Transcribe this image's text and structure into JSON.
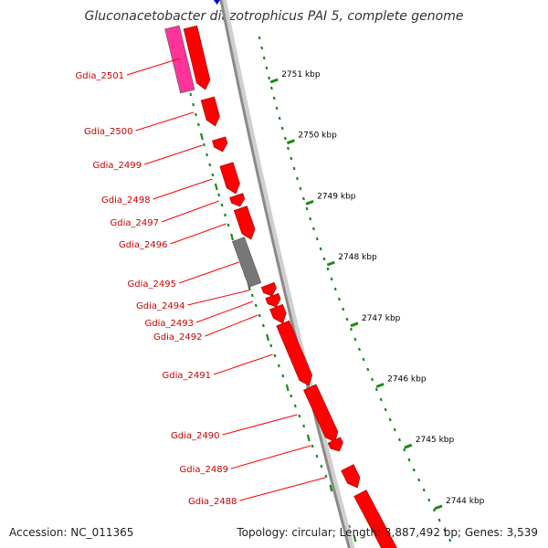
{
  "title": "Gluconacetobacter diazotrophicus PAI 5, complete genome",
  "footer": {
    "accession": "Accession: NC_011365",
    "summary": "Topology: circular; Length: 3,887,492 bp; Genes: 3,539"
  },
  "colors": {
    "gene_forward": "#ff0000",
    "gene_rna": "#ff3399",
    "gene_other": "#777777",
    "label_line": "#ff0000",
    "label_text": "#cc0000",
    "backbone": "#8a8a8a",
    "tick_dots": "#1a8a1a",
    "top_marker": "#0000cc"
  },
  "scale": {
    "unit": "kbp",
    "ticks": [
      {
        "label": "2751 kbp"
      },
      {
        "label": "2750 kbp"
      },
      {
        "label": "2749 kbp"
      },
      {
        "label": "2748 kbp"
      },
      {
        "label": "2747 kbp"
      },
      {
        "label": "2746 kbp"
      },
      {
        "label": "2745 kbp"
      },
      {
        "label": "2744 kbp"
      }
    ]
  },
  "genes": [
    {
      "label": "Gdia_2501"
    },
    {
      "label": "Gdia_2500"
    },
    {
      "label": "Gdia_2499"
    },
    {
      "label": "Gdia_2498"
    },
    {
      "label": "Gdia_2497"
    },
    {
      "label": "Gdia_2496"
    },
    {
      "label": "Gdia_2495"
    },
    {
      "label": "Gdia_2494"
    },
    {
      "label": "Gdia_2493"
    },
    {
      "label": "Gdia_2492"
    },
    {
      "label": "Gdia_2491"
    },
    {
      "label": "Gdia_2490"
    },
    {
      "label": "Gdia_2489"
    },
    {
      "label": "Gdia_2488"
    }
  ]
}
